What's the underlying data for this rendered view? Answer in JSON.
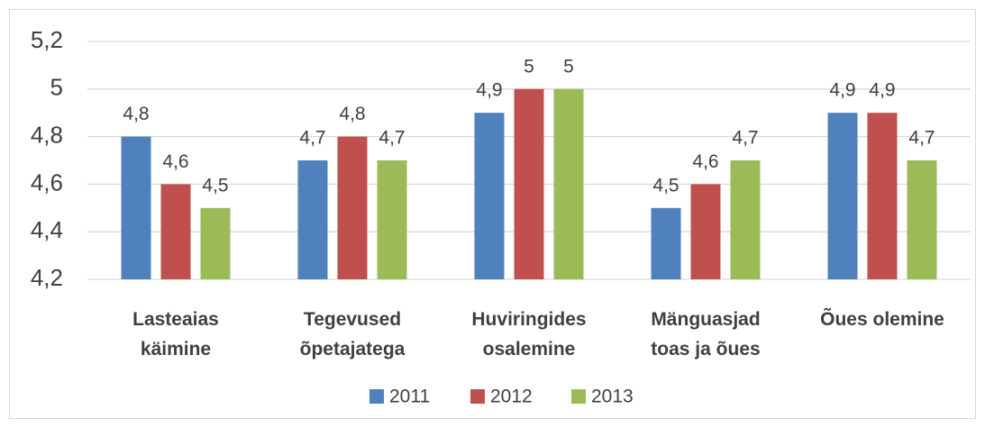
{
  "chart_data": {
    "type": "bar",
    "categories": [
      [
        "Lasteaias",
        "käimine"
      ],
      [
        "Tegevused",
        "õpetajatega"
      ],
      [
        "Huviringides",
        "osalemine"
      ],
      [
        "Mänguasjad",
        "toas ja õues"
      ],
      [
        "Õues olemine"
      ]
    ],
    "series": [
      {
        "name": "2011",
        "color": "#4f81bd",
        "values": [
          4.8,
          4.7,
          4.9,
          4.5,
          4.9
        ],
        "value_labels": [
          "4,8",
          "4,7",
          "4,9",
          "4,5",
          "4,9"
        ]
      },
      {
        "name": "2012",
        "color": "#c0504d",
        "values": [
          4.6,
          4.8,
          5,
          4.6,
          4.9
        ],
        "value_labels": [
          "4,6",
          "4,8",
          "5",
          "4,6",
          "4,9"
        ]
      },
      {
        "name": "2013",
        "color": "#9bbb59",
        "values": [
          4.5,
          4.7,
          5,
          4.7,
          4.7
        ],
        "value_labels": [
          "4,5",
          "4,7",
          "5",
          "4,7",
          "4,7"
        ]
      }
    ],
    "ylim": [
      4.2,
      5.2
    ],
    "yticks": [
      {
        "value": 4.2,
        "label": "4,2"
      },
      {
        "value": 4.4,
        "label": "4,4"
      },
      {
        "value": 4.6,
        "label": "4,6"
      },
      {
        "value": 4.8,
        "label": "4,8"
      },
      5,
      {
        "value": 5.2,
        "label": "5,2"
      }
    ],
    "grid": true,
    "legend": "bottom"
  }
}
